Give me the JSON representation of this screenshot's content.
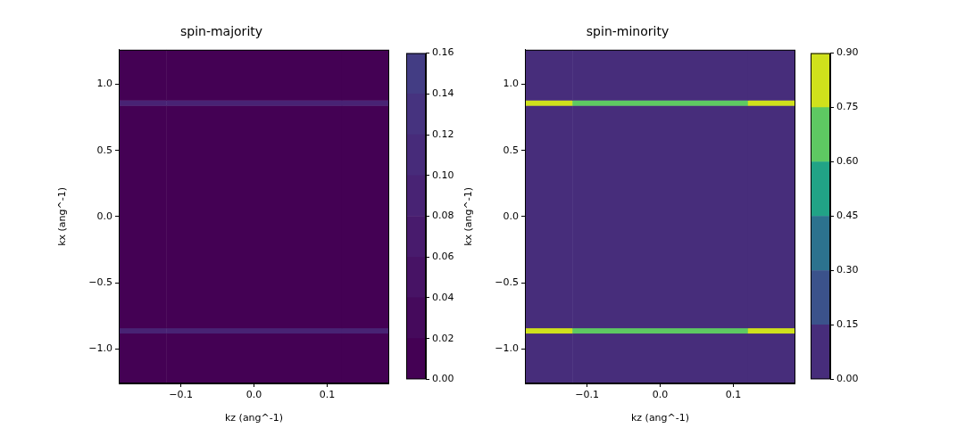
{
  "chart_data": [
    {
      "type": "heatmap",
      "title": "spin-majority",
      "x_label": "kz (ang^-1)",
      "y_label": "kx (ang^-1)",
      "grid": false,
      "x_edges": [
        -0.185,
        -0.12,
        0.12,
        0.185
      ],
      "y_edges": [
        -1.26,
        -0.88,
        -0.84,
        0.84,
        0.88,
        1.26
      ],
      "cells": [
        [
          0.01,
          0.01,
          0.01
        ],
        [
          0.09,
          0.09,
          0.09
        ],
        [
          0.01,
          0.01,
          0.01
        ],
        [
          0.09,
          0.09,
          0.09
        ],
        [
          0.01,
          0.01,
          0.01
        ]
      ],
      "xlim": [
        -0.185,
        0.185
      ],
      "ylim": [
        -1.26,
        1.26
      ],
      "xticks": [
        {
          "value": -0.1,
          "label": "−0.1"
        },
        {
          "value": 0,
          "label": "0.0"
        },
        {
          "value": 0.1,
          "label": "0.1"
        }
      ],
      "yticks": [
        {
          "value": -1,
          "label": "−1.0"
        },
        {
          "value": -0.5,
          "label": "−0.5"
        },
        {
          "value": 0,
          "label": "0.0"
        },
        {
          "value": 0.5,
          "label": "0.5"
        },
        {
          "value": 1,
          "label": "1.0"
        }
      ],
      "colorbar": {
        "range": [
          0,
          0.16
        ],
        "ticks": [
          {
            "value": 0,
            "label": "0.00"
          },
          {
            "value": 0.02,
            "label": "0.02"
          },
          {
            "value": 0.04,
            "label": "0.04"
          },
          {
            "value": 0.06,
            "label": "0.06"
          },
          {
            "value": 0.08,
            "label": "0.08"
          },
          {
            "value": 0.1,
            "label": "0.10"
          },
          {
            "value": 0.12,
            "label": "0.12"
          },
          {
            "value": 0.14,
            "label": "0.14"
          },
          {
            "value": 0.16,
            "label": "0.16"
          }
        ],
        "levels": [
          0,
          0.02,
          0.04,
          0.06,
          0.08,
          0.1,
          0.12,
          0.14,
          0.16
        ],
        "colors": [
          "#440154",
          "#450a5c",
          "#471365",
          "#481b6d",
          "#482374",
          "#472b7a",
          "#46337f",
          "#433d84"
        ]
      }
    },
    {
      "type": "heatmap",
      "title": "spin-minority",
      "x_label": "kz (ang^-1)",
      "y_label": "kx (ang^-1)",
      "grid": false,
      "x_edges": [
        -0.185,
        -0.12,
        0.12,
        0.185
      ],
      "y_edges": [
        -1.26,
        -0.88,
        -0.84,
        0.84,
        0.88,
        1.26
      ],
      "cells": [
        [
          0.1,
          0.1,
          0.1
        ],
        [
          0.85,
          0.7,
          0.85
        ],
        [
          0.1,
          0.1,
          0.1
        ],
        [
          0.85,
          0.7,
          0.85
        ],
        [
          0.1,
          0.1,
          0.1
        ]
      ],
      "xlim": [
        -0.185,
        0.185
      ],
      "ylim": [
        -1.26,
        1.26
      ],
      "xticks": [
        {
          "value": -0.1,
          "label": "−0.1"
        },
        {
          "value": 0,
          "label": "0.0"
        },
        {
          "value": 0.1,
          "label": "0.1"
        }
      ],
      "yticks": [
        {
          "value": -1,
          "label": "−1.0"
        },
        {
          "value": -0.5,
          "label": "−0.5"
        },
        {
          "value": 0,
          "label": "0.0"
        },
        {
          "value": 0.5,
          "label": "0.5"
        },
        {
          "value": 1,
          "label": "1.0"
        }
      ],
      "colorbar": {
        "range": [
          0,
          0.9
        ],
        "ticks": [
          {
            "value": 0,
            "label": "0.00"
          },
          {
            "value": 0.15,
            "label": "0.15"
          },
          {
            "value": 0.3,
            "label": "0.30"
          },
          {
            "value": 0.45,
            "label": "0.45"
          },
          {
            "value": 0.6,
            "label": "0.60"
          },
          {
            "value": 0.75,
            "label": "0.75"
          },
          {
            "value": 0.9,
            "label": "0.90"
          }
        ],
        "levels": [
          0,
          0.15,
          0.3,
          0.45,
          0.6,
          0.75,
          0.9
        ],
        "colors": [
          "#472d7b",
          "#3b528b",
          "#2c728e",
          "#21a386",
          "#5ec962",
          "#d0e11c"
        ]
      }
    }
  ]
}
